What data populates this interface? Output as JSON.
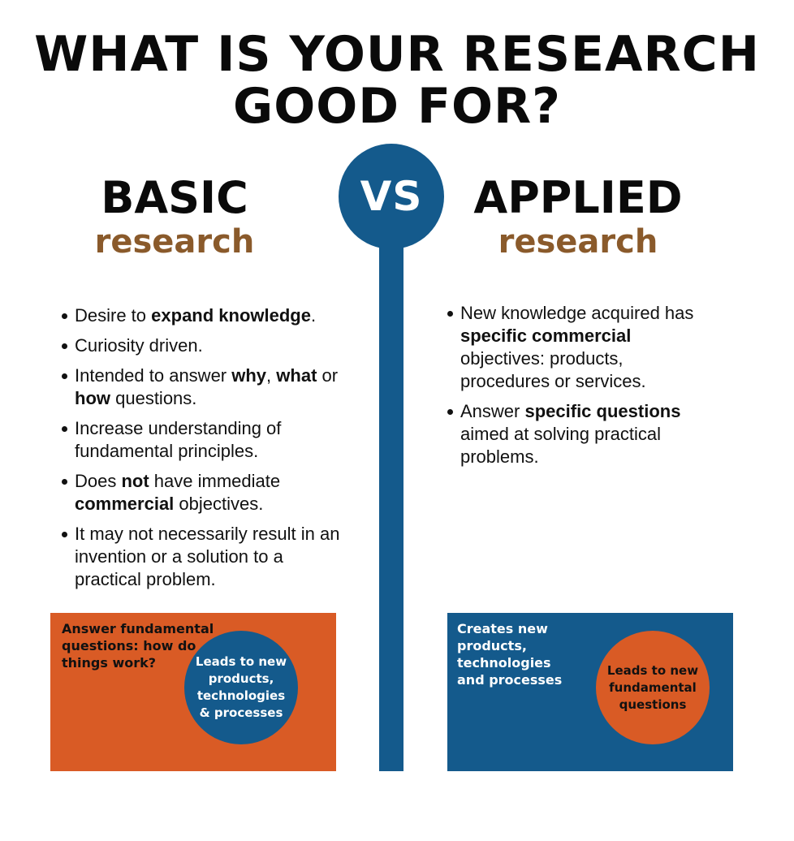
{
  "title": {
    "line1": "WHAT IS YOUR RESEARCH",
    "line2": "GOOD FOR?"
  },
  "vs_label": "VS",
  "basic": {
    "heading": "BASIC",
    "subheading": "research",
    "bullets": [
      [
        {
          "t": "Desire to "
        },
        {
          "t": "expand knowledge",
          "b": true
        },
        {
          "t": "."
        }
      ],
      [
        {
          "t": "Curiosity driven."
        }
      ],
      [
        {
          "t": "Intended to answer "
        },
        {
          "t": "why",
          "b": true
        },
        {
          "t": ", "
        },
        {
          "t": "what",
          "b": true
        },
        {
          "t": " or "
        },
        {
          "t": "how",
          "b": true
        },
        {
          "t": " questions."
        }
      ],
      [
        {
          "t": "Increase understanding of fundamental principles."
        }
      ],
      [
        {
          "t": "Does "
        },
        {
          "t": "not",
          "b": true
        },
        {
          "t": " have immediate "
        },
        {
          "t": "commercial",
          "b": true
        },
        {
          "t": " objectives."
        }
      ],
      [
        {
          "t": "It may not necessarily result in an invention or a solution to a practical problem."
        }
      ]
    ],
    "box_text": "Answer fundamental questions: how do things work?",
    "circle_text": "Leads to new products, technologies & processes"
  },
  "applied": {
    "heading": "APPLIED",
    "subheading": "research",
    "bullets": [
      [
        {
          "t": "New knowledge acquired has "
        },
        {
          "t": "specific commercial",
          "b": true
        },
        {
          "t": " objectives: products, procedures or services."
        }
      ],
      [
        {
          "t": "Answer "
        },
        {
          "t": "specific questions",
          "b": true
        },
        {
          "t": " aimed at solving practical problems."
        }
      ]
    ],
    "box_text": "Creates new products, technologies and processes",
    "circle_text": "Leads to new fundamental questions"
  },
  "colors": {
    "blue": "#145a8c",
    "orange": "#d95b25",
    "brown": "#8a5a2b"
  }
}
